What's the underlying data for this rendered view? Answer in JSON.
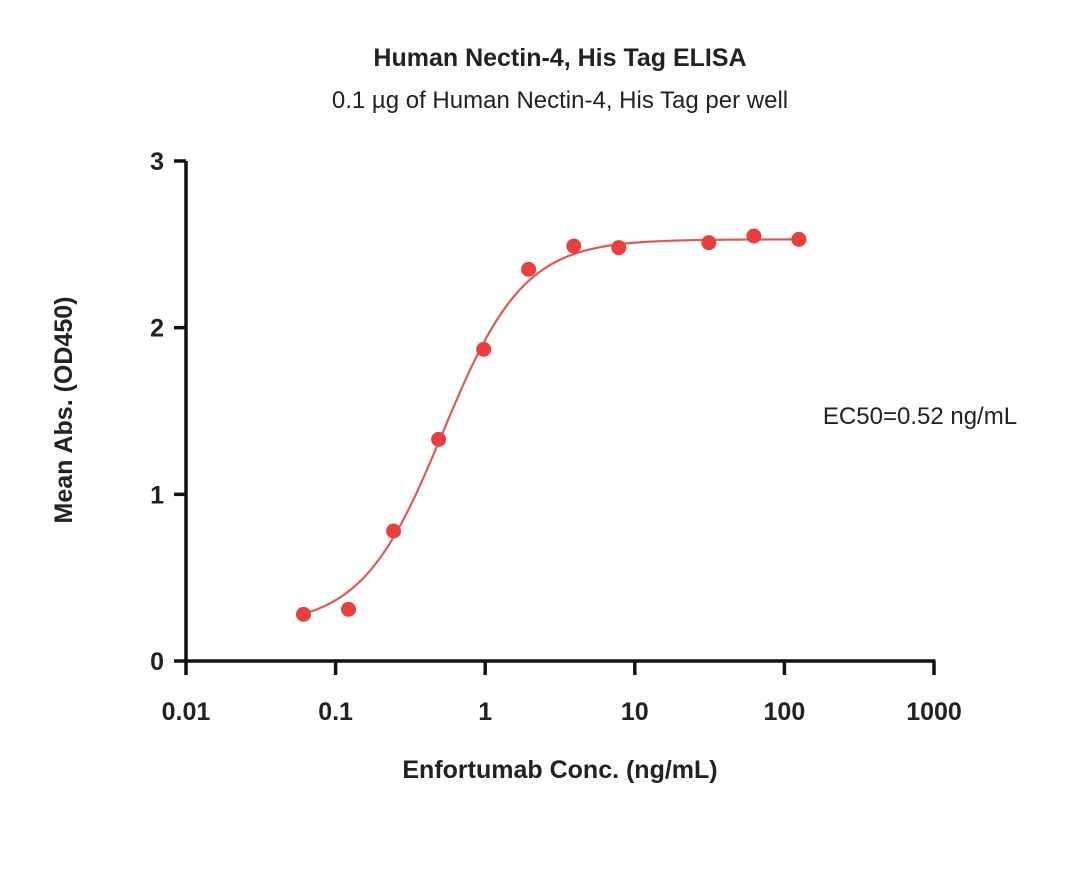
{
  "chart_data": {
    "type": "scatter",
    "title": "Human Nectin-4, His Tag ELISA",
    "subtitle": "0.1 µg of Human Nectin-4, His Tag per well",
    "xlabel": "Enfortumab Conc. (ng/mL)",
    "ylabel": "Mean Abs. (OD450)",
    "x_scale": "log",
    "xlim": [
      0.01,
      1000
    ],
    "ylim": [
      0,
      3
    ],
    "x_ticks": [
      "0.01",
      "0.1",
      "1",
      "10",
      "100",
      "1000"
    ],
    "y_ticks": [
      "0",
      "1",
      "2",
      "3"
    ],
    "grid": false,
    "annotation": "EC50=0.52 ng/mL",
    "series": [
      {
        "x": [
          0.061,
          0.122,
          0.244,
          0.488,
          0.977,
          1.95,
          3.91,
          7.81,
          31.25,
          62.5,
          125
        ],
        "y": [
          0.28,
          0.31,
          0.78,
          1.33,
          1.87,
          2.35,
          2.49,
          2.48,
          2.51,
          2.55,
          2.53
        ],
        "color": "#e8403f"
      }
    ],
    "fit": {
      "model": "4PL",
      "bottom": 0.21,
      "top": 2.53,
      "ec50": 0.52,
      "hill": 1.6,
      "x_range": [
        0.061,
        125
      ],
      "color": "#e05a55"
    }
  }
}
